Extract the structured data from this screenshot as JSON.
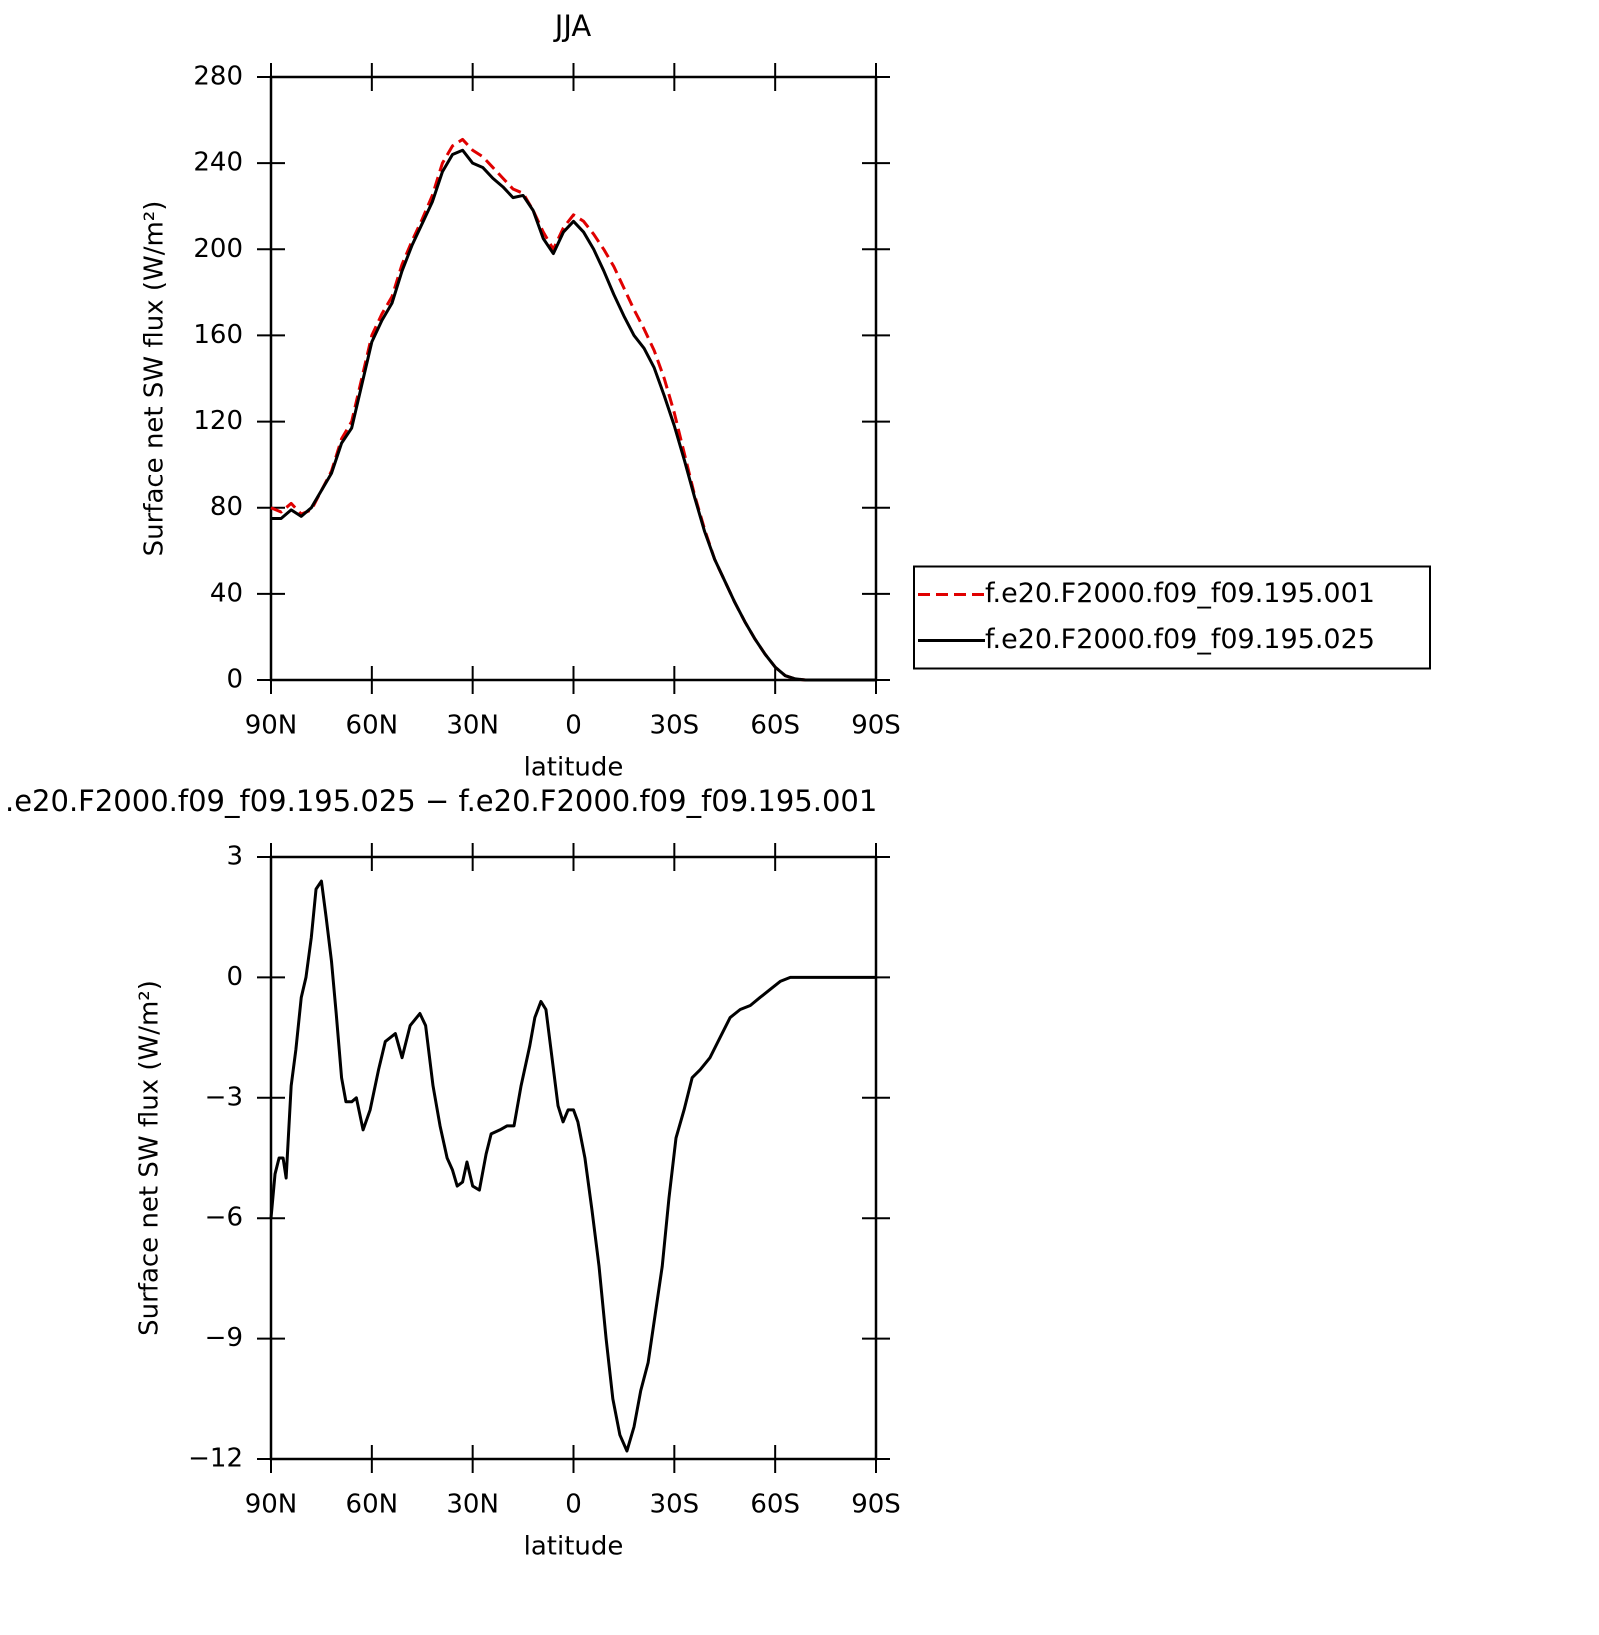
{
  "chart_data": [
    {
      "type": "line",
      "title": "JJA",
      "xlabel": "latitude",
      "ylabel": "Surface net SW flux (W/m²)",
      "xlim": [
        90,
        -90
      ],
      "xticks": [
        {
          "value": 90,
          "label": "90N"
        },
        {
          "value": 60,
          "label": "60N"
        },
        {
          "value": 30,
          "label": "30N"
        },
        0,
        {
          "value": -30,
          "label": "30S"
        },
        {
          "value": -60,
          "label": "60S"
        },
        {
          "value": -90,
          "label": "90S"
        }
      ],
      "ylim": [
        0,
        280
      ],
      "yticks": [
        0,
        40,
        80,
        120,
        160,
        200,
        240,
        280
      ],
      "legend": "right",
      "x": [
        90,
        87,
        84,
        81,
        78,
        75,
        72,
        69,
        66,
        63,
        60,
        57,
        54,
        51,
        48,
        45,
        42,
        39,
        36,
        33,
        30,
        27,
        24,
        21,
        18,
        15,
        12,
        9,
        6,
        3,
        0,
        -3,
        -6,
        -9,
        -12,
        -15,
        -18,
        -21,
        -24,
        -27,
        -30,
        -33,
        -36,
        -39,
        -42,
        -45,
        -48,
        -51,
        -54,
        -57,
        -60,
        -63,
        -66,
        -69,
        -72,
        -75,
        -78,
        -81,
        -84,
        -87,
        -90
      ],
      "series": [
        {
          "name": "f.e20.F2000.f09_f09.195.001",
          "color": "#e00000",
          "linestyle": "dashed",
          "values": [
            80,
            78,
            82,
            77,
            79,
            88,
            97,
            112,
            120,
            140,
            160,
            170,
            178,
            193,
            204,
            214,
            225,
            240,
            248,
            251,
            246,
            243,
            238,
            233,
            228,
            226,
            218,
            208,
            200,
            210,
            216,
            213,
            207,
            200,
            192,
            182,
            172,
            163,
            153,
            140,
            124,
            105,
            86,
            70,
            56,
            46,
            36,
            27,
            19,
            12,
            6,
            2,
            0.5,
            0,
            0,
            0,
            0,
            0,
            0,
            0,
            0
          ]
        },
        {
          "name": "f.e20.F2000.f09_f09.195.025",
          "color": "#000000",
          "linestyle": "solid",
          "values": [
            75,
            75,
            79,
            76,
            80,
            88,
            96,
            110,
            117,
            137,
            157,
            167,
            175,
            190,
            202,
            212,
            222,
            236,
            244,
            246,
            240,
            238,
            233,
            229,
            224,
            225,
            218,
            205,
            198,
            208,
            213,
            208,
            200,
            190,
            179,
            169,
            160,
            154,
            145,
            132,
            118,
            102,
            85,
            69,
            56,
            46,
            36,
            27,
            19,
            12,
            6,
            2,
            0.5,
            0,
            0,
            0,
            0,
            0,
            0,
            0,
            0
          ]
        }
      ]
    },
    {
      "type": "line",
      "title": ".e20.F2000.f09_f09.195.025 − f.e20.F2000.f09_f09.195.001",
      "xlabel": "latitude",
      "ylabel": "Surface net SW flux (W/m²)",
      "xlim": [
        90,
        -90
      ],
      "xticks": [
        {
          "value": 90,
          "label": "90N"
        },
        {
          "value": 60,
          "label": "60N"
        },
        {
          "value": 30,
          "label": "30N"
        },
        0,
        {
          "value": -30,
          "label": "30S"
        },
        {
          "value": -60,
          "label": "60S"
        },
        {
          "value": -90,
          "label": "90S"
        }
      ],
      "ylim": [
        -12,
        3
      ],
      "yticks": [
        {
          "value": -12,
          "label": "−12"
        },
        {
          "value": -9,
          "label": "−9"
        },
        {
          "value": -6,
          "label": "−6"
        },
        {
          "value": -3,
          "label": "−3"
        },
        0,
        3
      ],
      "x": [
        90,
        88.8,
        87.6,
        86.4,
        85.5,
        84,
        82.6,
        81,
        79.6,
        78,
        76.6,
        75,
        73.6,
        72,
        70.6,
        69,
        67.7,
        66,
        64.6,
        62.6,
        60.5,
        58,
        56,
        53,
        51,
        48.6,
        45.7,
        44,
        41.8,
        39.7,
        37.6,
        36,
        34.6,
        33,
        31.7,
        30,
        28,
        26,
        24.5,
        21.9,
        19.8,
        17.7,
        15.6,
        13,
        11.5,
        9.7,
        8.2,
        6.4,
        4.6,
        3.1,
        1.6,
        0,
        -1.3,
        -3.4,
        -5.5,
        -7.6,
        -9.7,
        -11.7,
        -13.8,
        -15.9,
        -18,
        -20,
        -22.2,
        -24.3,
        -26.4,
        -28.4,
        -30.5,
        -32.9,
        -35.3,
        -37.7,
        -40.6,
        -43.6,
        -46.6,
        -49.6,
        -52.6,
        -55.5,
        -58.5,
        -61.5,
        -64.5,
        -90
      ],
      "series": [
        {
          "color": "#000000",
          "linestyle": "solid",
          "values": [
            -6.0,
            -4.9,
            -4.5,
            -4.5,
            -5.0,
            -2.7,
            -1.8,
            -0.5,
            0,
            1.0,
            2.2,
            2.4,
            1.5,
            0.4,
            -0.9,
            -2.5,
            -3.1,
            -3.1,
            -3.0,
            -3.8,
            -3.3,
            -2.3,
            -1.6,
            -1.4,
            -2.0,
            -1.2,
            -0.9,
            -1.2,
            -2.7,
            -3.7,
            -4.5,
            -4.8,
            -5.2,
            -5.1,
            -4.6,
            -5.2,
            -5.3,
            -4.4,
            -3.9,
            -3.8,
            -3.7,
            -3.7,
            -2.7,
            -1.7,
            -1.0,
            -0.6,
            -0.8,
            -2.0,
            -3.2,
            -3.6,
            -3.3,
            -3.3,
            -3.6,
            -4.5,
            -5.8,
            -7.2,
            -9.0,
            -10.5,
            -11.4,
            -11.8,
            -11.2,
            -10.3,
            -9.6,
            -8.4,
            -7.2,
            -5.5,
            -4.0,
            -3.3,
            -2.5,
            -2.3,
            -2.0,
            -1.5,
            -1.0,
            -0.8,
            -0.7,
            -0.5,
            -0.3,
            -0.1,
            0,
            0
          ]
        }
      ]
    }
  ]
}
